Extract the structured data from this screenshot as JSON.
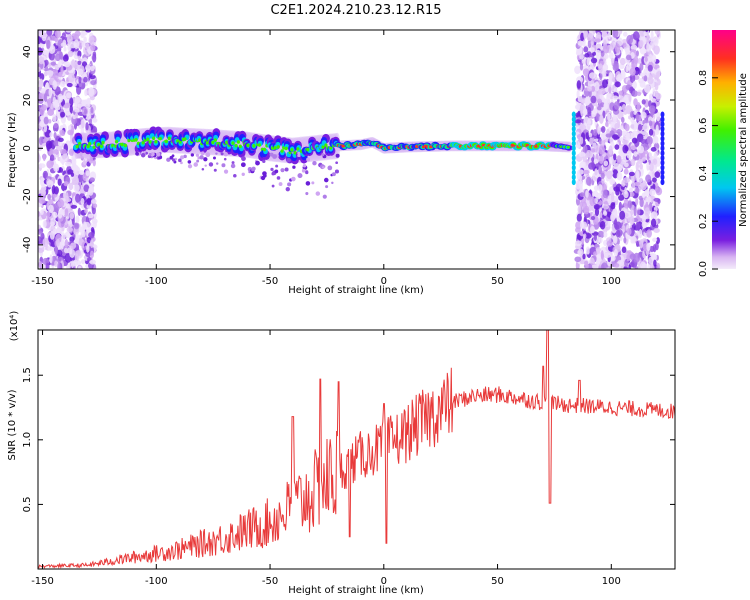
{
  "title": "C2E1.2024.210.23.12.R15",
  "chart_data": [
    {
      "type": "heatmap",
      "xlabel": "Height of straight line (km)",
      "ylabel": "Frequency (Hz)",
      "xlim": [
        -152,
        128
      ],
      "ylim": [
        -50,
        49
      ],
      "x_ticks": [
        "-150",
        "-100",
        "-50",
        "0",
        "50",
        "100"
      ],
      "y_ticks": [
        "-40",
        "-20",
        "0",
        "20",
        "40"
      ],
      "colorbar": {
        "label": "Normalized spectral amplitude",
        "range": [
          0.0,
          1.0
        ],
        "ticks": [
          "0.0",
          "0.2",
          "0.4",
          "0.6",
          "0.8"
        ]
      },
      "center_line": [
        {
          "x": -135,
          "y": 1.0
        },
        {
          "x": -120,
          "y": 1.5
        },
        {
          "x": -105,
          "y": 3.0
        },
        {
          "x": -95,
          "y": 3.5
        },
        {
          "x": -85,
          "y": 3.0
        },
        {
          "x": -75,
          "y": 2.5
        },
        {
          "x": -60,
          "y": 1.5
        },
        {
          "x": -50,
          "y": 0.0
        },
        {
          "x": -40,
          "y": -1.0
        },
        {
          "x": -30,
          "y": 0.0
        },
        {
          "x": -20,
          "y": 1.0
        },
        {
          "x": -10,
          "y": 1.5
        },
        {
          "x": -5,
          "y": 2.5
        },
        {
          "x": 0,
          "y": 0.0
        },
        {
          "x": 10,
          "y": 0.5
        },
        {
          "x": 30,
          "y": 1.0
        },
        {
          "x": 50,
          "y": 1.0
        },
        {
          "x": 70,
          "y": 1.0
        },
        {
          "x": 82,
          "y": 0.5
        }
      ],
      "noise_regions": [
        [
          -152,
          -127
        ],
        [
          85,
          121
        ]
      ]
    },
    {
      "type": "line",
      "xlabel": "Height of straight line (km)",
      "ylabel": "SNR (10 * v/v)",
      "yscale_label": "(x10⁴)",
      "xlim": [
        -152,
        128
      ],
      "ylim": [
        0,
        18500
      ],
      "x_ticks": [
        "-150",
        "-100",
        "-50",
        "0",
        "50",
        "100"
      ],
      "y_ticks": [
        "0.5",
        "1.0",
        "1.5"
      ],
      "series": [
        {
          "color": "#e83a3a",
          "envelope": [
            {
              "x": -152,
              "y": 200
            },
            {
              "x": -130,
              "y": 300
            },
            {
              "x": -110,
              "y": 900
            },
            {
              "x": -90,
              "y": 1500
            },
            {
              "x": -70,
              "y": 2400
            },
            {
              "x": -50,
              "y": 3600
            },
            {
              "x": -40,
              "y": 4800
            },
            {
              "x": -30,
              "y": 6000
            },
            {
              "x": -20,
              "y": 7500
            },
            {
              "x": -10,
              "y": 8800
            },
            {
              "x": 0,
              "y": 9500
            },
            {
              "x": 10,
              "y": 10500
            },
            {
              "x": 20,
              "y": 11800
            },
            {
              "x": 30,
              "y": 12900
            },
            {
              "x": 40,
              "y": 13400
            },
            {
              "x": 50,
              "y": 13500
            },
            {
              "x": 60,
              "y": 13200
            },
            {
              "x": 70,
              "y": 12900
            },
            {
              "x": 80,
              "y": 12700
            },
            {
              "x": 90,
              "y": 12600
            },
            {
              "x": 100,
              "y": 12500
            },
            {
              "x": 110,
              "y": 12400
            },
            {
              "x": 128,
              "y": 12200
            }
          ],
          "spikes": [
            {
              "x": -40,
              "y": 11800
            },
            {
              "x": -28,
              "y": 14700
            },
            {
              "x": -20,
              "y": 14500
            },
            {
              "x": -15,
              "y": 2500
            },
            {
              "x": 0,
              "y": 12800
            },
            {
              "x": 1,
              "y": 2000
            },
            {
              "x": 70,
              "y": 15700
            },
            {
              "x": 72,
              "y": 18500
            },
            {
              "x": 73,
              "y": 5100
            },
            {
              "x": 86,
              "y": 14600
            }
          ]
        }
      ]
    }
  ]
}
